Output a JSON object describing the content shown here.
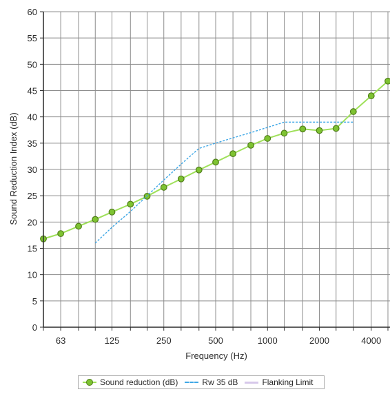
{
  "chart_data": {
    "type": "line",
    "title": "",
    "xlabel": "Frequency (Hz)",
    "ylabel": "Sound Reduction Index (dB)",
    "x_scale": "log",
    "ylim": [
      0,
      60
    ],
    "y_ticks": [
      0,
      5,
      10,
      15,
      20,
      25,
      30,
      35,
      40,
      45,
      50,
      55,
      60
    ],
    "x_tick_labels": [
      {
        "value": 63,
        "label": "63"
      },
      {
        "value": 125,
        "label": "125"
      },
      {
        "value": 250,
        "label": "250"
      },
      {
        "value": 500,
        "label": "500"
      },
      {
        "value": 1000,
        "label": "1000"
      },
      {
        "value": 2000,
        "label": "2000"
      },
      {
        "value": 4000,
        "label": "4000"
      }
    ],
    "x_grid_frequencies": [
      50,
      63,
      80,
      100,
      125,
      160,
      200,
      250,
      315,
      400,
      500,
      630,
      800,
      1000,
      1250,
      1600,
      2000,
      2500,
      3150,
      4000,
      5000
    ],
    "grid": true,
    "legend_position": "bottom",
    "series": [
      {
        "name": "Sound reduction (dB)",
        "color": "#9fe05a",
        "marker_color": "#7ec332",
        "style": "solid-with-markers",
        "x": [
          50,
          63,
          80,
          100,
          125,
          160,
          200,
          250,
          315,
          400,
          500,
          630,
          800,
          1000,
          1250,
          1600,
          2000,
          2500,
          3150,
          4000,
          5000
        ],
        "y": [
          16.8,
          17.8,
          19.2,
          20.5,
          21.9,
          23.4,
          24.9,
          26.6,
          28.2,
          29.9,
          31.4,
          33.0,
          34.6,
          35.9,
          36.9,
          37.7,
          37.4,
          37.8,
          41.0,
          44.0,
          46.8
        ]
      },
      {
        "name": "Rw 35 dB",
        "color": "#3ea7e6",
        "style": "dashed",
        "x": [
          100,
          125,
          160,
          200,
          250,
          315,
          400,
          500,
          630,
          800,
          1000,
          1250,
          1600,
          2000,
          2500,
          3150
        ],
        "y": [
          16,
          19,
          22,
          25,
          28,
          31,
          34,
          35,
          36,
          37,
          38,
          39,
          39,
          39,
          39,
          39
        ]
      },
      {
        "name": "Flanking Limit",
        "color": "#d7c8ea",
        "style": "solid",
        "x": [],
        "y": []
      }
    ]
  }
}
